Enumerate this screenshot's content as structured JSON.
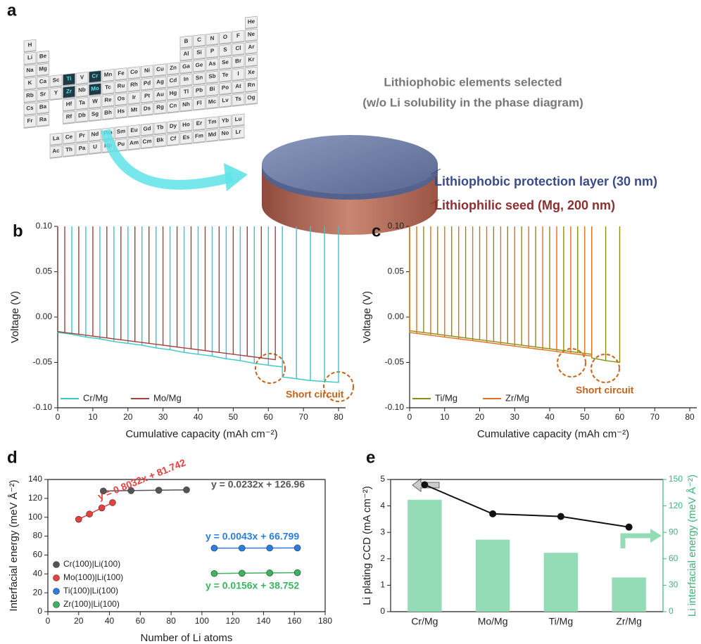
{
  "panel_a": {
    "label": "a",
    "heading": [
      "Lithiophobic elements selected",
      "(w/o Li solubility in the phase diagram)"
    ],
    "layers": [
      "Lithiophobic protection layer (30 nm)",
      "Lithiophilic seed (Mg, 200 nm)"
    ],
    "periodic_table": {
      "rows": [
        [
          "H",
          null,
          null,
          null,
          null,
          null,
          null,
          null,
          null,
          null,
          null,
          null,
          null,
          null,
          null,
          null,
          null,
          "He"
        ],
        [
          "Li",
          "Be",
          null,
          null,
          null,
          null,
          null,
          null,
          null,
          null,
          null,
          null,
          "B",
          "C",
          "N",
          "O",
          "F",
          "Ne"
        ],
        [
          "Na",
          "Mg",
          null,
          null,
          null,
          null,
          null,
          null,
          null,
          null,
          null,
          null,
          "Al",
          "Si",
          "P",
          "S",
          "Cl",
          "Ar"
        ],
        [
          "K",
          "Ca",
          "Sc",
          {
            "symbol": "Ti",
            "highlight": true
          },
          "V",
          {
            "symbol": "Cr",
            "highlight": true
          },
          "Mn",
          "Fe",
          "Co",
          "Ni",
          "Cu",
          "Zn",
          "Ga",
          "Ge",
          "As",
          "Se",
          "Br",
          "Kr"
        ],
        [
          "Rb",
          "Sr",
          "Y",
          {
            "symbol": "Zr",
            "highlight": true
          },
          "Nb",
          {
            "symbol": "Mo",
            "highlight": true
          },
          "Tc",
          "Ru",
          "Rh",
          "Pd",
          "Ag",
          "Cd",
          "In",
          "Sn",
          "Sb",
          "Te",
          "I",
          "Xe"
        ],
        [
          "Cs",
          "Ba",
          null,
          "Hf",
          "Ta",
          "W",
          "Re",
          "Os",
          "Ir",
          "Pt",
          "Au",
          "Hg",
          "Tl",
          "Pb",
          "Bi",
          "Po",
          "At",
          "Rn"
        ],
        [
          "Fr",
          "Ra",
          null,
          "Rf",
          "Db",
          "Sg",
          "Bh",
          "Hs",
          "Mt",
          "Ds",
          "Rg",
          "Cn",
          "Nh",
          "Fl",
          "Mc",
          "Lv",
          "Ts",
          "Og"
        ]
      ],
      "f_block": [
        [
          "La",
          "Ce",
          "Pr",
          "Nd",
          "Pm",
          "Sm",
          "Eu",
          "Gd",
          "Tb",
          "Dy",
          "Ho",
          "Er",
          "Tm",
          "Yb",
          "Lu"
        ],
        [
          "Ac",
          "Th",
          "Pa",
          "U",
          "Np",
          "Pu",
          "Am",
          "Cm",
          "Bk",
          "Cf",
          "Es",
          "Fm",
          "Md",
          "No",
          "Lr"
        ]
      ]
    }
  },
  "chart_data": [
    {
      "type": "line",
      "label": "b",
      "x_label": "Cumulative capacity (mAh cm⁻²)",
      "y_label": "Voltage (V)",
      "annotation": "Short circuit",
      "xlim": [
        0,
        82
      ],
      "xticks": [
        0,
        10,
        20,
        30,
        40,
        50,
        60,
        70,
        80
      ],
      "ylim": [
        -0.1,
        0.1
      ],
      "yticks": [
        {
          "value": -0.1,
          "label": "-0.10"
        },
        -0.05,
        {
          "value": 0,
          "label": "0.00"
        },
        0.05,
        {
          "value": 0.1,
          "label": "0.10"
        }
      ],
      "series": [
        {
          "name": "Cr/Mg",
          "color": "#36c9c6",
          "x": [
            0,
            0,
            4,
            4,
            4,
            8,
            8,
            8,
            12,
            12,
            12,
            16,
            16,
            16,
            20,
            20,
            20,
            24,
            24,
            24,
            28,
            28,
            28,
            32,
            32,
            32,
            36,
            36,
            36,
            40,
            40,
            40,
            44,
            44,
            44,
            48,
            48,
            48,
            52,
            52,
            52,
            56,
            56,
            56,
            60,
            60,
            60,
            64,
            64,
            64,
            68,
            68,
            68,
            72,
            72,
            72,
            76,
            76,
            76,
            80,
            80
          ],
          "values": [
            0.1,
            -0.017,
            -0.019,
            0.1,
            -0.019,
            -0.022,
            0.1,
            -0.022,
            -0.024,
            0.1,
            -0.024,
            -0.027,
            0.1,
            -0.027,
            -0.029,
            0.1,
            -0.029,
            -0.031,
            0.1,
            -0.031,
            -0.034,
            0.1,
            -0.034,
            -0.036,
            0.1,
            -0.036,
            -0.039,
            0.1,
            -0.039,
            -0.041,
            0.1,
            -0.041,
            -0.043,
            0.1,
            -0.043,
            -0.046,
            0.1,
            -0.046,
            -0.048,
            0.1,
            -0.048,
            -0.051,
            0.1,
            -0.051,
            -0.053,
            0.1,
            -0.053,
            -0.055,
            0.1,
            -0.066,
            -0.068,
            0.1,
            -0.068,
            -0.07,
            0.1,
            -0.07,
            -0.071,
            0.1,
            -0.071,
            -0.072,
            0.1
          ]
        },
        {
          "name": "Mo/Mg",
          "color": "#a3413c",
          "x": [
            0,
            0,
            2,
            2,
            2,
            6,
            6,
            6,
            10,
            10,
            10,
            14,
            14,
            14,
            18,
            18,
            18,
            22,
            22,
            22,
            26,
            26,
            26,
            30,
            30,
            30,
            34,
            34,
            34,
            38,
            38,
            38,
            42,
            42,
            42,
            46,
            46,
            46,
            50,
            50,
            50,
            54,
            54,
            54,
            58,
            58,
            58,
            62,
            62
          ],
          "values": [
            0.1,
            -0.016,
            -0.017,
            0.1,
            -0.017,
            -0.019,
            0.1,
            -0.019,
            -0.021,
            0.1,
            -0.021,
            -0.023,
            0.1,
            -0.023,
            -0.025,
            0.1,
            -0.025,
            -0.027,
            0.1,
            -0.027,
            -0.029,
            0.1,
            -0.029,
            -0.031,
            0.1,
            -0.031,
            -0.033,
            0.1,
            -0.033,
            -0.035,
            0.1,
            -0.035,
            -0.037,
            0.1,
            -0.037,
            -0.039,
            0.1,
            -0.039,
            -0.041,
            0.1,
            -0.041,
            -0.043,
            0.1,
            -0.043,
            -0.045,
            0.1,
            -0.045,
            -0.047,
            0.1
          ]
        }
      ]
    },
    {
      "type": "line",
      "label": "c",
      "x_label": "Cumulative capacity (mAh cm⁻²)",
      "y_label": "Voltage (V)",
      "annotation": "Short circuit",
      "xlim": [
        0,
        82
      ],
      "xticks": [
        0,
        10,
        20,
        30,
        40,
        50,
        60,
        70,
        80
      ],
      "ylim": [
        -0.1,
        0.1
      ],
      "yticks": [
        {
          "value": -0.1,
          "label": "-0.10"
        },
        -0.05,
        {
          "value": 0,
          "label": "0.00"
        },
        0.05,
        {
          "value": 0.1,
          "label": "0.10"
        }
      ],
      "series": [
        {
          "name": "Ti/Mg",
          "color": "#8c8c12",
          "x": [
            0,
            0,
            4,
            4,
            4,
            8,
            8,
            8,
            12,
            12,
            12,
            16,
            16,
            16,
            20,
            20,
            20,
            24,
            24,
            24,
            28,
            28,
            28,
            32,
            32,
            32,
            36,
            36,
            36,
            40,
            40,
            40,
            44,
            44,
            44,
            48,
            48,
            48,
            52,
            52,
            52,
            56,
            56,
            56,
            60,
            60
          ],
          "values": [
            0.1,
            -0.015,
            -0.017,
            0.1,
            -0.017,
            -0.019,
            0.1,
            -0.019,
            -0.021,
            0.1,
            -0.021,
            -0.023,
            0.1,
            -0.023,
            -0.025,
            0.1,
            -0.025,
            -0.027,
            0.1,
            -0.027,
            -0.029,
            0.1,
            -0.029,
            -0.031,
            0.1,
            -0.031,
            -0.033,
            0.1,
            -0.033,
            -0.035,
            0.1,
            -0.035,
            -0.037,
            0.1,
            -0.037,
            -0.039,
            0.1,
            -0.039,
            -0.041,
            0.1,
            -0.045,
            -0.048,
            0.1,
            -0.048,
            -0.05,
            0.1
          ]
        },
        {
          "name": "Zr/Mg",
          "color": "#e3701c",
          "x": [
            0,
            0,
            2,
            2,
            2,
            6,
            6,
            6,
            10,
            10,
            10,
            14,
            14,
            14,
            18,
            18,
            18,
            22,
            22,
            22,
            26,
            26,
            26,
            30,
            30,
            30,
            34,
            34,
            34,
            38,
            38,
            38,
            42,
            42,
            42,
            46,
            46,
            46,
            50,
            50,
            50,
            52,
            52
          ],
          "values": [
            0.1,
            -0.017,
            -0.018,
            0.1,
            -0.018,
            -0.02,
            0.1,
            -0.02,
            -0.022,
            0.1,
            -0.022,
            -0.024,
            0.1,
            -0.024,
            -0.026,
            0.1,
            -0.026,
            -0.028,
            0.1,
            -0.028,
            -0.03,
            0.1,
            -0.03,
            -0.032,
            0.1,
            -0.032,
            -0.034,
            0.1,
            -0.034,
            -0.036,
            0.1,
            -0.036,
            -0.038,
            0.1,
            -0.038,
            -0.04,
            0.1,
            -0.04,
            -0.042,
            0.1,
            -0.042,
            -0.043,
            0.1
          ]
        }
      ]
    },
    {
      "type": "scatter",
      "label": "d",
      "x_label": "Number of Li atoms",
      "y_label": "Interfacial energy (meV Å⁻²)",
      "xlim": [
        0,
        180
      ],
      "xticks": [
        0,
        20,
        40,
        60,
        80,
        100,
        120,
        140,
        160,
        180
      ],
      "ylim": [
        0,
        140
      ],
      "yticks": [
        0,
        20,
        40,
        60,
        80,
        100,
        120,
        140
      ],
      "series": [
        {
          "name": "Cr(100)|Li(100)",
          "color": "#555555",
          "equation": "y = 0.0232x + 126.96",
          "x": [
            36,
            54,
            72,
            90
          ],
          "values": [
            127.8,
            128.2,
            128.6,
            129.0
          ]
        },
        {
          "name": "Mo(100)|Li(100)",
          "color": "#e8403f",
          "equation": "y = 0.8032x + 81.742",
          "x": [
            20,
            27,
            35,
            42
          ],
          "values": [
            97.8,
            103.4,
            109.9,
            115.5
          ]
        },
        {
          "name": "Ti(100)|Li(100)",
          "color": "#2b7de0",
          "equation": "y = 0.0043x + 66.799",
          "x": [
            108,
            126,
            144,
            162
          ],
          "values": [
            67.3,
            67.3,
            67.4,
            67.5
          ]
        },
        {
          "name": "Zr(100)|Li(100)",
          "color": "#3cb35e",
          "equation": "y = 0.0156x + 38.752",
          "x": [
            108,
            126,
            144,
            162
          ],
          "values": [
            40.4,
            40.7,
            41.0,
            41.3
          ]
        }
      ]
    },
    {
      "type": "bar",
      "label": "e",
      "y_label": "Li plating CCD (mA cm⁻²)",
      "y2_label": "Li interfacial energy (meV Å⁻²)",
      "categories": [
        "Cr/Mg",
        "Mo/Mg",
        "Ti/Mg",
        "Zr/Mg"
      ],
      "ylim": [
        0,
        5
      ],
      "yticks": [
        0,
        1,
        2,
        3,
        4,
        5
      ],
      "y2lim": [
        0,
        150
      ],
      "y2ticks": [
        0,
        30,
        60,
        90,
        120,
        150
      ],
      "y2_color": "#3fb47a",
      "series": [
        {
          "type": "bar",
          "axis": "y2",
          "color": "#93dcb6",
          "values": [
            127.0,
            81.7,
            66.8,
            38.8
          ]
        },
        {
          "type": "line",
          "color": "#111111",
          "values": [
            4.8,
            3.7,
            3.6,
            3.2
          ]
        }
      ]
    }
  ]
}
